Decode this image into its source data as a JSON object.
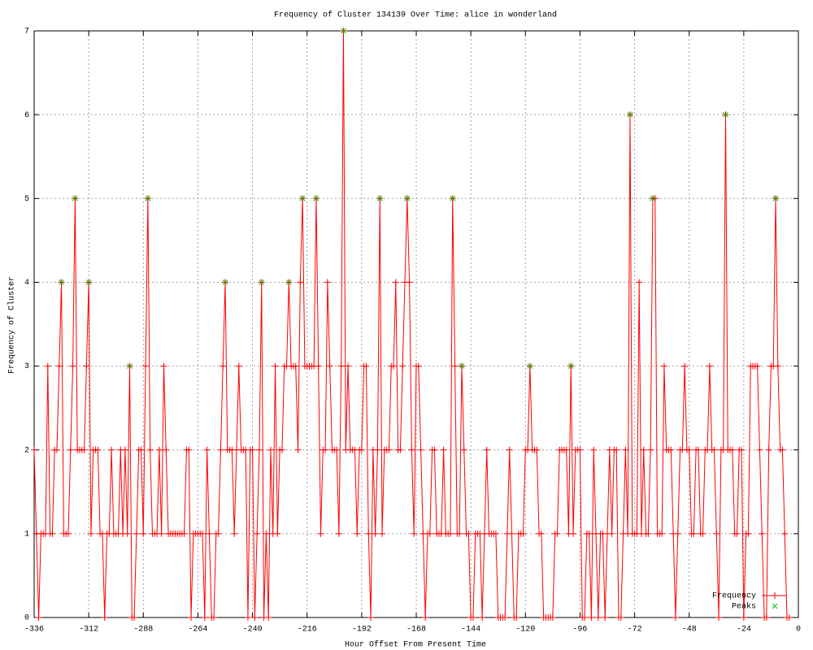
{
  "chart_data": {
    "type": "line",
    "title": "Frequency of Cluster 134139 Over Time: alice in wonderland",
    "x_label": "Hour Offset From Present Time",
    "y_label": "Frequency of Cluster",
    "xlim": [
      -336,
      0
    ],
    "ylim": [
      0,
      7
    ],
    "xticks": [
      -336,
      -312,
      -288,
      -264,
      -240,
      -216,
      -192,
      -168,
      -144,
      -120,
      -96,
      -72,
      -48,
      -24,
      0
    ],
    "yticks": [
      0,
      1,
      2,
      3,
      4,
      5,
      6,
      7
    ],
    "grid": true,
    "legend": "bottom right",
    "series": [
      {
        "name": "Frequency",
        "color": "#ff0000",
        "style": "linespoints",
        "x": [
          -336,
          -335,
          -334,
          -333,
          -332,
          -331,
          -330,
          -329,
          -328,
          -327,
          -326,
          -325,
          -324,
          -323,
          -322,
          -321,
          -320,
          -319,
          -318,
          -317,
          -316,
          -315,
          -314,
          -313,
          -312,
          -311,
          -310,
          -309,
          -308,
          -307,
          -306,
          -305,
          -304,
          -303,
          -302,
          -301,
          -300,
          -299,
          -298,
          -297,
          -296,
          -295,
          -294,
          -293,
          -292,
          -291,
          -290,
          -289,
          -288,
          -287,
          -286,
          -285,
          -284,
          -283,
          -282,
          -281,
          -280,
          -279,
          -278,
          -277,
          -276,
          -275,
          -274,
          -273,
          -272,
          -271,
          -270,
          -269,
          -268,
          -267,
          -266,
          -265,
          -264,
          -263,
          -262,
          -261,
          -260,
          -259,
          -258,
          -257,
          -256,
          -255,
          -254,
          -253,
          -252,
          -251,
          -250,
          -249,
          -248,
          -247,
          -246,
          -245,
          -244,
          -243,
          -242,
          -241,
          -240,
          -239,
          -238,
          -237,
          -236,
          -235,
          -234,
          -233,
          -232,
          -231,
          -230,
          -229,
          -228,
          -227,
          -226,
          -225,
          -224,
          -223,
          -222,
          -221,
          -220,
          -219,
          -218,
          -217,
          -216,
          -215,
          -214,
          -213,
          -212,
          -211,
          -210,
          -209,
          -208,
          -207,
          -206,
          -205,
          -204,
          -203,
          -202,
          -201,
          -200,
          -199,
          -198,
          -197,
          -196,
          -195,
          -194,
          -193,
          -192,
          -191,
          -190,
          -189,
          -188,
          -187,
          -186,
          -185,
          -184,
          -183,
          -182,
          -181,
          -180,
          -179,
          -178,
          -177,
          -176,
          -175,
          -174,
          -173,
          -172,
          -171,
          -170,
          -169,
          -168,
          -167,
          -166,
          -165,
          -164,
          -163,
          -162,
          -161,
          -160,
          -159,
          -158,
          -157,
          -156,
          -155,
          -154,
          -153,
          -152,
          -151,
          -150,
          -149,
          -148,
          -147,
          -146,
          -145,
          -144,
          -143,
          -142,
          -141,
          -140,
          -139,
          -138,
          -137,
          -136,
          -135,
          -134,
          -133,
          -132,
          -131,
          -130,
          -129,
          -128,
          -127,
          -126,
          -125,
          -124,
          -123,
          -122,
          -121,
          -120,
          -119,
          -118,
          -117,
          -116,
          -115,
          -114,
          -113,
          -112,
          -111,
          -110,
          -109,
          -108,
          -107,
          -106,
          -105,
          -104,
          -103,
          -102,
          -101,
          -100,
          -99,
          -98,
          -97,
          -96,
          -95,
          -94,
          -93,
          -92,
          -91,
          -90,
          -89,
          -88,
          -87,
          -86,
          -85,
          -84,
          -83,
          -82,
          -81,
          -80,
          -79,
          -78,
          -77,
          -76,
          -75,
          -74,
          -73,
          -72,
          -71,
          -70,
          -69,
          -68,
          -67,
          -66,
          -65,
          -64,
          -63,
          -62,
          -61,
          -60,
          -59,
          -58,
          -57,
          -56,
          -55,
          -54,
          -53,
          -52,
          -51,
          -50,
          -49,
          -48,
          -47,
          -46,
          -45,
          -44,
          -43,
          -42,
          -41,
          -40,
          -39,
          -38,
          -37,
          -36,
          -35,
          -34,
          -33,
          -32,
          -31,
          -30,
          -29,
          -28,
          -27,
          -26,
          -25,
          -24,
          -23,
          -22,
          -21,
          -20,
          -19,
          -18,
          -17,
          -16,
          -15,
          -14,
          -13,
          -12,
          -11,
          -10,
          -9,
          -8,
          -7,
          -6,
          -5,
          -4
        ],
        "values": [
          2,
          1,
          0,
          1,
          1,
          1,
          3,
          1,
          1,
          2,
          2,
          3,
          4,
          1,
          1,
          1,
          2,
          3,
          5,
          2,
          2,
          2,
          2,
          3,
          4,
          1,
          2,
          2,
          2,
          1,
          1,
          0,
          1,
          1,
          2,
          1,
          1,
          1,
          2,
          1,
          2,
          1,
          3,
          0,
          0,
          1,
          2,
          2,
          1,
          3,
          5,
          2,
          1,
          1,
          1,
          2,
          1,
          3,
          2,
          1,
          1,
          1,
          1,
          1,
          1,
          1,
          1,
          2,
          2,
          0,
          1,
          1,
          1,
          1,
          1,
          0,
          2,
          1,
          0,
          0,
          1,
          1,
          2,
          3,
          4,
          2,
          2,
          2,
          1,
          2,
          3,
          2,
          2,
          2,
          0,
          2,
          2,
          0,
          1,
          2,
          4,
          0,
          1,
          0,
          2,
          1,
          3,
          1,
          2,
          2,
          3,
          3,
          4,
          3,
          3,
          3,
          2,
          4,
          5,
          3,
          3,
          3,
          3,
          3,
          5,
          3,
          1,
          2,
          2,
          4,
          3,
          2,
          2,
          2,
          1,
          3,
          7,
          2,
          3,
          2,
          2,
          2,
          1,
          2,
          2,
          3,
          3,
          1,
          0,
          2,
          1,
          2,
          5,
          1,
          2,
          2,
          2,
          3,
          3,
          4,
          2,
          2,
          3,
          4,
          5,
          4,
          2,
          1,
          3,
          3,
          2,
          1,
          0,
          1,
          1,
          2,
          2,
          1,
          1,
          1,
          2,
          1,
          1,
          1,
          5,
          3,
          1,
          1,
          3,
          2,
          1,
          1,
          0,
          0,
          1,
          1,
          1,
          0,
          1,
          2,
          1,
          1,
          1,
          1,
          0,
          0,
          0,
          0,
          1,
          2,
          1,
          0,
          0,
          1,
          1,
          1,
          2,
          2,
          3,
          2,
          2,
          2,
          1,
          1,
          0,
          0,
          0,
          0,
          0,
          1,
          1,
          2,
          2,
          2,
          2,
          1,
          3,
          1,
          2,
          2,
          2,
          0,
          0,
          1,
          1,
          0,
          2,
          1,
          0,
          1,
          1,
          0,
          1,
          2,
          1,
          2,
          2,
          0,
          0,
          1,
          2,
          1,
          6,
          1,
          1,
          1,
          4,
          1,
          2,
          1,
          1,
          2,
          5,
          5,
          1,
          1,
          1,
          3,
          2,
          2,
          2,
          1,
          0,
          1,
          2,
          2,
          3,
          2,
          2,
          1,
          1,
          2,
          2,
          1,
          1,
          2,
          2,
          3,
          2,
          2,
          1,
          0,
          2,
          2,
          6,
          2,
          2,
          2,
          1,
          1,
          2,
          2,
          0,
          1,
          1,
          3,
          3,
          3,
          3,
          2,
          1,
          0,
          0,
          2,
          3,
          3,
          5,
          3,
          2,
          2,
          1,
          0,
          0
        ]
      },
      {
        "name": "Peaks",
        "color": "#00c000",
        "style": "points",
        "x": [
          -324,
          -318,
          -312,
          -294,
          -286,
          -252,
          -236,
          -224,
          -218,
          -212,
          -200,
          -184,
          -172,
          -152,
          -148,
          -118,
          -100,
          -74,
          -64,
          -32,
          -10
        ],
        "values": [
          4,
          5,
          4,
          3,
          5,
          4,
          4,
          4,
          5,
          5,
          7,
          5,
          5,
          5,
          3,
          3,
          3,
          6,
          5,
          6,
          5
        ]
      }
    ]
  }
}
